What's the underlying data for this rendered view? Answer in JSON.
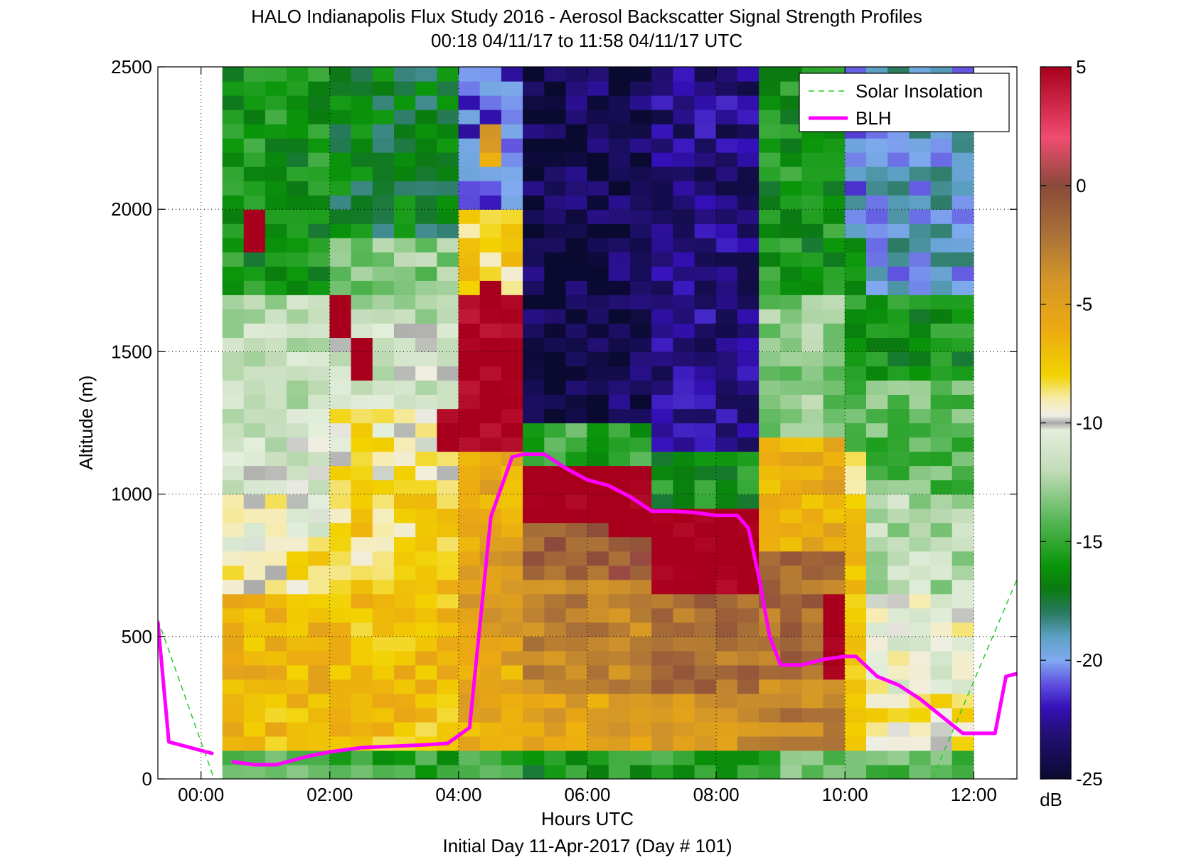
{
  "chart_data": {
    "type": "heatmap",
    "title": "HALO Indianapolis Flux Study 2016 - Aerosol Backscatter Signal Strength Profiles",
    "subtitle": "00:18 04/11/17 to 11:58 04/11/17  UTC",
    "xlabel": "Hours UTC",
    "xlabel2": "Initial Day 11-Apr-2017 (Day # 101)",
    "ylabel": "Altitude (m)",
    "xlim": [
      -0.67,
      12.67
    ],
    "ylim": [
      0,
      2500
    ],
    "x_ticks": [
      0,
      2,
      4,
      6,
      8,
      10,
      12
    ],
    "x_tick_labels": [
      "00:00",
      "02:00",
      "04:00",
      "06:00",
      "08:00",
      "10:00",
      "12:00"
    ],
    "y_ticks": [
      0,
      500,
      1000,
      1500,
      2000,
      2500
    ],
    "y_tick_labels": [
      "0",
      "500",
      "1000",
      "1500",
      "2000",
      "2500"
    ],
    "grid": true,
    "legend_position": "top-right",
    "colorbar": {
      "label": "dB",
      "range": [
        -25,
        5
      ],
      "ticks": [
        5,
        0,
        -5,
        -10,
        -15,
        -20,
        -25
      ],
      "tick_labels": [
        "5",
        "0",
        "-5",
        "-10",
        "-15",
        "-20",
        "-25"
      ],
      "stops": [
        {
          "v": 5,
          "c": "#a8001c"
        },
        {
          "v": 2,
          "c": "#f04c70"
        },
        {
          "v": 0,
          "c": "#8a4a3a"
        },
        {
          "v": -2,
          "c": "#a87038"
        },
        {
          "v": -4,
          "c": "#d49628"
        },
        {
          "v": -6,
          "c": "#eca912"
        },
        {
          "v": -8,
          "c": "#f2d200"
        },
        {
          "v": -9,
          "c": "#f6ecb0"
        },
        {
          "v": -9.7,
          "c": "#efeee6"
        },
        {
          "v": -10,
          "c": "#a8a8a8"
        },
        {
          "v": -10.3,
          "c": "#e4eedc"
        },
        {
          "v": -12,
          "c": "#c2dcb8"
        },
        {
          "v": -14,
          "c": "#5cb85c"
        },
        {
          "v": -16,
          "c": "#0a960a"
        },
        {
          "v": -17,
          "c": "#0a7a10"
        },
        {
          "v": -18,
          "c": "#2a7a60"
        },
        {
          "v": -19,
          "c": "#5ca0c4"
        },
        {
          "v": -20,
          "c": "#80aaf0"
        },
        {
          "v": -21,
          "c": "#6050e0"
        },
        {
          "v": -22,
          "c": "#3410b8"
        },
        {
          "v": -23,
          "c": "#24107a"
        },
        {
          "v": -25,
          "c": "#0a0a30"
        }
      ]
    },
    "heatmap": {
      "x_start": 0.33,
      "x_step": 0.3333,
      "alt_bands": [
        {
          "from": 0,
          "to": 80,
          "value": -14
        },
        {
          "from": 80,
          "to": 300,
          "value": -7
        },
        {
          "from": 300,
          "to": 600,
          "value": -7
        },
        {
          "from": 600,
          "to": 800,
          "value": -8
        },
        {
          "from": 800,
          "to": 1000,
          "value": -9
        },
        {
          "from": 1000,
          "to": 1200,
          "value": -10
        },
        {
          "from": 1200,
          "to": 1500,
          "value": -11
        },
        {
          "from": 1500,
          "to": 1800,
          "value": -12
        },
        {
          "from": 1800,
          "to": 2500,
          "value": -16
        }
      ],
      "segments": [
        {
          "x_from": 0.33,
          "x_to": 2.0,
          "bands": [
            [
              0,
              80,
              -14
            ],
            [
              80,
              300,
              -7
            ],
            [
              300,
              650,
              -6.5
            ],
            [
              650,
              800,
              -8.5
            ],
            [
              800,
              1000,
              -10
            ],
            [
              1000,
              1250,
              -11
            ],
            [
              1250,
              1700,
              -12
            ],
            [
              1700,
              2500,
              -16
            ]
          ]
        },
        {
          "x_from": 2.0,
          "x_to": 4.0,
          "bands": [
            [
              0,
              80,
              -15
            ],
            [
              80,
              300,
              -7
            ],
            [
              300,
              700,
              -7
            ],
            [
              700,
              1000,
              -8
            ],
            [
              1000,
              1300,
              -9
            ],
            [
              1300,
              1600,
              -11
            ],
            [
              1600,
              1900,
              -13
            ],
            [
              1900,
              2500,
              -17
            ]
          ]
        },
        {
          "x_from": 4.0,
          "x_to": 5.0,
          "bands": [
            [
              0,
              80,
              -15
            ],
            [
              80,
              400,
              -6
            ],
            [
              400,
              800,
              -5
            ],
            [
              800,
              1150,
              -6
            ],
            [
              1150,
              1700,
              4
            ],
            [
              1700,
              2000,
              -8
            ],
            [
              2000,
              2500,
              -21
            ]
          ]
        },
        {
          "x_from": 5.0,
          "x_to": 7.0,
          "bands": [
            [
              0,
              80,
              -16
            ],
            [
              80,
              300,
              -5
            ],
            [
              300,
              700,
              -3
            ],
            [
              700,
              900,
              -1
            ],
            [
              900,
              1120,
              4.5
            ],
            [
              1120,
              1250,
              -15
            ],
            [
              1250,
              2500,
              -24
            ]
          ]
        },
        {
          "x_from": 7.0,
          "x_to": 8.5,
          "bands": [
            [
              0,
              80,
              -15
            ],
            [
              80,
              300,
              -4
            ],
            [
              300,
              650,
              -2
            ],
            [
              650,
              950,
              4.5
            ],
            [
              950,
              1150,
              -16
            ],
            [
              1150,
              2500,
              -23
            ]
          ]
        },
        {
          "x_from": 8.5,
          "x_to": 10.0,
          "bands": [
            [
              0,
              80,
              -14
            ],
            [
              80,
              400,
              -3
            ],
            [
              400,
              800,
              -2
            ],
            [
              800,
              1200,
              -6
            ],
            [
              1200,
              1700,
              -13
            ],
            [
              1700,
              2500,
              -16
            ]
          ]
        },
        {
          "x_from": 10.0,
          "x_to": 12.0,
          "bands": [
            [
              0,
              80,
              -14
            ],
            [
              80,
              300,
              -9
            ],
            [
              300,
              650,
              -10
            ],
            [
              650,
              1000,
              -12
            ],
            [
              1000,
              1400,
              -14
            ],
            [
              1400,
              1900,
              -16
            ],
            [
              1900,
              2500,
              -20
            ]
          ]
        }
      ],
      "hotspots": [
        {
          "x_from": 5.0,
          "x_to": 6.33,
          "y_from": 900,
          "y_to": 1120,
          "value": 4.5
        },
        {
          "x_from": 6.33,
          "x_to": 7.0,
          "y_from": 850,
          "y_to": 1050,
          "value": 4.5
        },
        {
          "x_from": 7.0,
          "x_to": 8.5,
          "y_from": 650,
          "y_to": 950,
          "value": 4.5
        },
        {
          "x_from": 9.67,
          "x_to": 10.0,
          "y_from": 350,
          "y_to": 650,
          "value": 4.5
        },
        {
          "x_from": 3.67,
          "x_to": 4.0,
          "y_from": 1150,
          "y_to": 1300,
          "value": 4.5
        },
        {
          "x_from": 4.33,
          "x_to": 4.67,
          "y_from": 1600,
          "y_to": 1750,
          "value": 4.5
        },
        {
          "x_from": 4.67,
          "x_to": 5.0,
          "y_from": 1300,
          "y_to": 1500,
          "value": 4.5
        },
        {
          "x_from": 2.0,
          "x_to": 2.33,
          "y_from": 1550,
          "y_to": 1700,
          "value": 4.5
        },
        {
          "x_from": 2.33,
          "x_to": 2.67,
          "y_from": 1400,
          "y_to": 1550,
          "value": 4.5
        },
        {
          "x_from": 0.67,
          "x_to": 1.0,
          "y_from": 1850,
          "y_to": 2000,
          "value": 4.5
        },
        {
          "x_from": 10.0,
          "x_to": 10.33,
          "y_from": 80,
          "y_to": 1150,
          "value": -7.5
        },
        {
          "x_from": 10.33,
          "x_to": 12.0,
          "y_from": 1700,
          "y_to": 2500,
          "value": -19.5
        },
        {
          "x_from": 4.33,
          "x_to": 4.67,
          "y_from": 2150,
          "y_to": 2300,
          "value": -5
        }
      ]
    },
    "series": [
      {
        "name": "Solar Insolation",
        "style": "dashed",
        "color": "#22cc22",
        "segments": [
          {
            "x": [
              -0.67,
              0.25
            ],
            "y": [
              560,
              -30
            ]
          },
          {
            "x": [
              11.3,
              12.67
            ],
            "y": [
              -30,
              700
            ]
          }
        ]
      },
      {
        "name": "BLH",
        "style": "solid",
        "color": "#ff00ff",
        "segments": [
          {
            "x": [
              -0.67,
              -0.5,
              0.0,
              0.17
            ],
            "y": [
              550,
              130,
              100,
              90
            ]
          },
          {
            "x": [
              0.5,
              0.83,
              1.17,
              1.67,
              2.0,
              2.5,
              3.0,
              3.5,
              3.83,
              4.17,
              4.5,
              4.83,
              5.0,
              5.33,
              5.67,
              6.0,
              6.33,
              6.67,
              7.0,
              7.33,
              7.67,
              8.0,
              8.33,
              8.5,
              8.67,
              8.83,
              9.0,
              9.33,
              9.67,
              10.0,
              10.17,
              10.5,
              10.83,
              11.17,
              11.5,
              11.83,
              12.0,
              12.33,
              12.5,
              12.67
            ],
            "y": [
              60,
              50,
              50,
              80,
              95,
              110,
              115,
              120,
              125,
              180,
              920,
              1130,
              1140,
              1140,
              1090,
              1050,
              1030,
              990,
              940,
              940,
              935,
              925,
              925,
              880,
              700,
              500,
              400,
              400,
              420,
              430,
              430,
              360,
              330,
              280,
              220,
              160,
              160,
              160,
              360,
              370
            ]
          }
        ]
      }
    ]
  }
}
